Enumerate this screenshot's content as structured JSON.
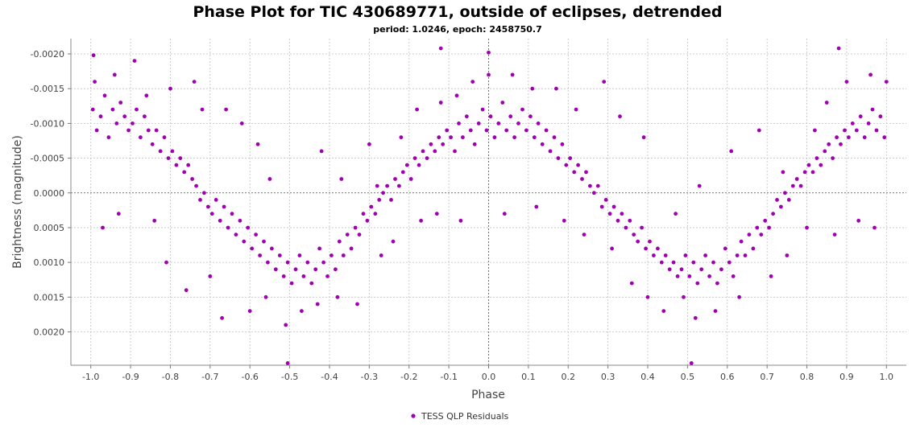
{
  "chart_data": {
    "type": "scatter",
    "title": "Phase Plot for TIC 430689771, outside of eclipses, detrended",
    "subtitle": "period: 1.0246, epoch: 2458750.7",
    "xlabel": "Phase",
    "ylabel": "Brightness (magnitude)",
    "xlim": [
      -1.05,
      1.05
    ],
    "ylim": [
      -0.00222,
      0.00248
    ],
    "y_inverted": true,
    "grid": true,
    "legend_position": "bottom-center",
    "x_ticks": [
      -1.0,
      -0.9,
      -0.8,
      -0.7,
      -0.6,
      -0.5,
      -0.4,
      -0.3,
      -0.2,
      -0.1,
      0.0,
      0.1,
      0.2,
      0.3,
      0.4,
      0.5,
      0.6,
      0.7,
      0.8,
      0.9,
      1.0
    ],
    "x_tick_labels": [
      "-1.0",
      "-0.9",
      "-0.8",
      "-0.7",
      "-0.6",
      "-0.5",
      "-0.4",
      "-0.3",
      "-0.2",
      "-0.1",
      "0.0",
      "0.1",
      "0.2",
      "0.3",
      "0.4",
      "0.5",
      "0.6",
      "0.7",
      "0.8",
      "0.9",
      "1.0"
    ],
    "y_ticks": [
      -0.002,
      -0.0015,
      -0.001,
      -0.0005,
      0.0,
      0.0005,
      0.001,
      0.0015,
      0.002
    ],
    "y_tick_labels": [
      "-0.0020",
      "-0.0015",
      "-0.0010",
      "-0.0005",
      "0.0000",
      "0.0005",
      "0.0010",
      "0.0015",
      "0.0020"
    ],
    "series": [
      {
        "name": "TESS QLP Residuals",
        "color": "#a000b0",
        "points": [
          [
            -0.995,
            -0.0012
          ],
          [
            -0.985,
            -0.0009
          ],
          [
            -0.975,
            -0.0011
          ],
          [
            -0.965,
            -0.0014
          ],
          [
            -0.955,
            -0.0008
          ],
          [
            -0.945,
            -0.0012
          ],
          [
            -0.935,
            -0.001
          ],
          [
            -0.925,
            -0.0013
          ],
          [
            -0.915,
            -0.0011
          ],
          [
            -0.905,
            -0.0009
          ],
          [
            -0.895,
            -0.001
          ],
          [
            -0.885,
            -0.0012
          ],
          [
            -0.875,
            -0.0008
          ],
          [
            -0.865,
            -0.0011
          ],
          [
            -0.855,
            -0.0009
          ],
          [
            -0.845,
            -0.0007
          ],
          [
            -0.835,
            -0.0009
          ],
          [
            -0.825,
            -0.0006
          ],
          [
            -0.815,
            -0.0008
          ],
          [
            -0.805,
            -0.0005
          ],
          [
            -0.795,
            -0.0006
          ],
          [
            -0.785,
            -0.0004
          ],
          [
            -0.775,
            -0.0005
          ],
          [
            -0.765,
            -0.0003
          ],
          [
            -0.755,
            -0.0004
          ],
          [
            -0.745,
            -0.0002
          ],
          [
            -0.735,
            -0.0001
          ],
          [
            -0.725,
            0.0001
          ],
          [
            -0.715,
            0.0
          ],
          [
            -0.705,
            0.0002
          ],
          [
            -0.695,
            0.0003
          ],
          [
            -0.685,
            0.0001
          ],
          [
            -0.675,
            0.0004
          ],
          [
            -0.665,
            0.0002
          ],
          [
            -0.655,
            0.0005
          ],
          [
            -0.645,
            0.0003
          ],
          [
            -0.635,
            0.0006
          ],
          [
            -0.625,
            0.0004
          ],
          [
            -0.615,
            0.0007
          ],
          [
            -0.605,
            0.0005
          ],
          [
            -0.595,
            0.0008
          ],
          [
            -0.585,
            0.0006
          ],
          [
            -0.575,
            0.0009
          ],
          [
            -0.565,
            0.0007
          ],
          [
            -0.555,
            0.001
          ],
          [
            -0.545,
            0.0008
          ],
          [
            -0.535,
            0.0011
          ],
          [
            -0.525,
            0.0009
          ],
          [
            -0.515,
            0.0012
          ],
          [
            -0.505,
            0.001
          ],
          [
            -0.495,
            0.0013
          ],
          [
            -0.485,
            0.0011
          ],
          [
            -0.475,
            0.0009
          ],
          [
            -0.465,
            0.0012
          ],
          [
            -0.455,
            0.001
          ],
          [
            -0.445,
            0.0013
          ],
          [
            -0.435,
            0.0011
          ],
          [
            -0.425,
            0.0008
          ],
          [
            -0.415,
            0.001
          ],
          [
            -0.405,
            0.0012
          ],
          [
            -0.395,
            0.0009
          ],
          [
            -0.385,
            0.0011
          ],
          [
            -0.375,
            0.0007
          ],
          [
            -0.365,
            0.0009
          ],
          [
            -0.355,
            0.0006
          ],
          [
            -0.345,
            0.0008
          ],
          [
            -0.335,
            0.0005
          ],
          [
            -0.325,
            0.0006
          ],
          [
            -0.315,
            0.0003
          ],
          [
            -0.305,
            0.0004
          ],
          [
            -0.295,
            0.0002
          ],
          [
            -0.285,
            0.0003
          ],
          [
            -0.275,
            0.0001
          ],
          [
            -0.265,
            0.0
          ],
          [
            -0.255,
            -0.0001
          ],
          [
            -0.245,
            0.0001
          ],
          [
            -0.235,
            -0.0002
          ],
          [
            -0.225,
            -0.0001
          ],
          [
            -0.215,
            -0.0003
          ],
          [
            -0.205,
            -0.0004
          ],
          [
            -0.195,
            -0.0002
          ],
          [
            -0.185,
            -0.0005
          ],
          [
            -0.175,
            -0.0004
          ],
          [
            -0.165,
            -0.0006
          ],
          [
            -0.155,
            -0.0005
          ],
          [
            -0.145,
            -0.0007
          ],
          [
            -0.135,
            -0.0006
          ],
          [
            -0.125,
            -0.0008
          ],
          [
            -0.115,
            -0.0007
          ],
          [
            -0.105,
            -0.0009
          ],
          [
            -0.095,
            -0.0008
          ],
          [
            -0.085,
            -0.0006
          ],
          [
            -0.075,
            -0.001
          ],
          [
            -0.065,
            -0.0008
          ],
          [
            -0.055,
            -0.0011
          ],
          [
            -0.045,
            -0.0009
          ],
          [
            -0.035,
            -0.0007
          ],
          [
            -0.025,
            -0.001
          ],
          [
            -0.015,
            -0.0012
          ],
          [
            -0.005,
            -0.0009
          ],
          [
            0.005,
            -0.0011
          ],
          [
            0.015,
            -0.0008
          ],
          [
            0.025,
            -0.001
          ],
          [
            0.035,
            -0.0013
          ],
          [
            0.045,
            -0.0009
          ],
          [
            0.055,
            -0.0011
          ],
          [
            0.065,
            -0.0008
          ],
          [
            0.075,
            -0.001
          ],
          [
            0.085,
            -0.0012
          ],
          [
            0.095,
            -0.0009
          ],
          [
            0.105,
            -0.0011
          ],
          [
            0.115,
            -0.0008
          ],
          [
            0.125,
            -0.001
          ],
          [
            0.135,
            -0.0007
          ],
          [
            0.145,
            -0.0009
          ],
          [
            0.155,
            -0.0006
          ],
          [
            0.165,
            -0.0008
          ],
          [
            0.175,
            -0.0005
          ],
          [
            0.185,
            -0.0007
          ],
          [
            0.195,
            -0.0004
          ],
          [
            0.205,
            -0.0005
          ],
          [
            0.215,
            -0.0003
          ],
          [
            0.225,
            -0.0004
          ],
          [
            0.235,
            -0.0002
          ],
          [
            0.245,
            -0.0003
          ],
          [
            0.255,
            -0.0001
          ],
          [
            0.265,
            0.0
          ],
          [
            0.275,
            -0.0001
          ],
          [
            0.285,
            0.0002
          ],
          [
            0.295,
            0.0001
          ],
          [
            0.305,
            0.0003
          ],
          [
            0.315,
            0.0002
          ],
          [
            0.325,
            0.0004
          ],
          [
            0.335,
            0.0003
          ],
          [
            0.345,
            0.0005
          ],
          [
            0.355,
            0.0004
          ],
          [
            0.365,
            0.0006
          ],
          [
            0.375,
            0.0007
          ],
          [
            0.385,
            0.0005
          ],
          [
            0.395,
            0.0008
          ],
          [
            0.405,
            0.0007
          ],
          [
            0.415,
            0.0009
          ],
          [
            0.425,
            0.0008
          ],
          [
            0.435,
            0.001
          ],
          [
            0.445,
            0.0009
          ],
          [
            0.455,
            0.0011
          ],
          [
            0.465,
            0.001
          ],
          [
            0.475,
            0.0012
          ],
          [
            0.485,
            0.0011
          ],
          [
            0.495,
            0.0009
          ],
          [
            0.505,
            0.0012
          ],
          [
            0.515,
            0.001
          ],
          [
            0.525,
            0.0013
          ],
          [
            0.535,
            0.0011
          ],
          [
            0.545,
            0.0009
          ],
          [
            0.555,
            0.0012
          ],
          [
            0.565,
            0.001
          ],
          [
            0.575,
            0.0013
          ],
          [
            0.585,
            0.0011
          ],
          [
            0.595,
            0.0008
          ],
          [
            0.605,
            0.001
          ],
          [
            0.615,
            0.0012
          ],
          [
            0.625,
            0.0009
          ],
          [
            0.635,
            0.0007
          ],
          [
            0.645,
            0.0009
          ],
          [
            0.655,
            0.0006
          ],
          [
            0.665,
            0.0008
          ],
          [
            0.675,
            0.0005
          ],
          [
            0.685,
            0.0006
          ],
          [
            0.695,
            0.0004
          ],
          [
            0.705,
            0.0005
          ],
          [
            0.715,
            0.0003
          ],
          [
            0.725,
            0.0001
          ],
          [
            0.735,
            0.0002
          ],
          [
            0.745,
            0.0
          ],
          [
            0.755,
            0.0001
          ],
          [
            0.765,
            -0.0001
          ],
          [
            0.775,
            -0.0002
          ],
          [
            0.785,
            -0.0001
          ],
          [
            0.795,
            -0.0003
          ],
          [
            0.805,
            -0.0004
          ],
          [
            0.815,
            -0.0003
          ],
          [
            0.825,
            -0.0005
          ],
          [
            0.835,
            -0.0004
          ],
          [
            0.845,
            -0.0006
          ],
          [
            0.855,
            -0.0007
          ],
          [
            0.865,
            -0.0005
          ],
          [
            0.875,
            -0.0008
          ],
          [
            0.885,
            -0.0007
          ],
          [
            0.895,
            -0.0009
          ],
          [
            0.905,
            -0.0008
          ],
          [
            0.915,
            -0.001
          ],
          [
            0.925,
            -0.0009
          ],
          [
            0.935,
            -0.0011
          ],
          [
            0.945,
            -0.0008
          ],
          [
            0.955,
            -0.001
          ],
          [
            0.965,
            -0.0012
          ],
          [
            0.975,
            -0.0009
          ],
          [
            0.985,
            -0.0011
          ],
          [
            0.995,
            -0.0008
          ],
          [
            -0.99,
            -0.0016
          ],
          [
            -0.94,
            -0.0017
          ],
          [
            -0.89,
            -0.0019
          ],
          [
            -0.86,
            -0.0014
          ],
          [
            -0.8,
            -0.0015
          ],
          [
            -0.74,
            -0.0016
          ],
          [
            -0.72,
            -0.0012
          ],
          [
            -0.66,
            -0.0012
          ],
          [
            -0.62,
            -0.001
          ],
          [
            -0.58,
            -0.0007
          ],
          [
            -0.55,
            -0.0002
          ],
          [
            -0.42,
            -0.0006
          ],
          [
            -0.37,
            -0.0002
          ],
          [
            -0.3,
            -0.0007
          ],
          [
            -0.28,
            -0.0001
          ],
          [
            -0.22,
            -0.0008
          ],
          [
            -0.18,
            -0.0012
          ],
          [
            -0.12,
            -0.0013
          ],
          [
            -0.08,
            -0.0014
          ],
          [
            -0.04,
            -0.0016
          ],
          [
            0.0,
            -0.0017
          ],
          [
            0.06,
            -0.0017
          ],
          [
            0.11,
            -0.0015
          ],
          [
            0.17,
            -0.0015
          ],
          [
            0.22,
            -0.0012
          ],
          [
            0.29,
            -0.0016
          ],
          [
            0.33,
            -0.0011
          ],
          [
            0.39,
            -0.0008
          ],
          [
            0.47,
            0.0003
          ],
          [
            0.53,
            -0.0001
          ],
          [
            0.61,
            -0.0006
          ],
          [
            0.68,
            -0.0009
          ],
          [
            0.74,
            -0.0003
          ],
          [
            0.82,
            -0.0009
          ],
          [
            0.85,
            -0.0013
          ],
          [
            0.9,
            -0.0016
          ],
          [
            0.96,
            -0.0017
          ],
          [
            1.0,
            -0.0016
          ],
          [
            -0.97,
            0.0005
          ],
          [
            -0.93,
            0.0003
          ],
          [
            -0.84,
            0.0004
          ],
          [
            -0.81,
            0.001
          ],
          [
            -0.76,
            0.0014
          ],
          [
            -0.7,
            0.0012
          ],
          [
            -0.67,
            0.0018
          ],
          [
            -0.6,
            0.0017
          ],
          [
            -0.56,
            0.0015
          ],
          [
            -0.51,
            0.0019
          ],
          [
            -0.47,
            0.0017
          ],
          [
            -0.43,
            0.0016
          ],
          [
            -0.38,
            0.0015
          ],
          [
            -0.33,
            0.0016
          ],
          [
            -0.27,
            0.0009
          ],
          [
            -0.24,
            0.0007
          ],
          [
            -0.17,
            0.0004
          ],
          [
            -0.13,
            0.0003
          ],
          [
            -0.07,
            0.0004
          ],
          [
            0.04,
            0.0003
          ],
          [
            0.12,
            0.0002
          ],
          [
            0.19,
            0.0004
          ],
          [
            0.24,
            0.0006
          ],
          [
            0.31,
            0.0008
          ],
          [
            0.36,
            0.0013
          ],
          [
            0.4,
            0.0015
          ],
          [
            0.44,
            0.0017
          ],
          [
            0.49,
            0.0015
          ],
          [
            0.52,
            0.0018
          ],
          [
            0.57,
            0.0017
          ],
          [
            0.63,
            0.0015
          ],
          [
            0.71,
            0.0012
          ],
          [
            0.75,
            0.0009
          ],
          [
            0.8,
            0.0005
          ],
          [
            0.87,
            0.0006
          ],
          [
            0.93,
            0.0004
          ],
          [
            0.97,
            0.0005
          ],
          [
            -0.993,
            -0.00198
          ],
          [
            -0.12,
            -0.00208
          ],
          [
            0.0,
            -0.00202
          ],
          [
            0.88,
            -0.00208
          ],
          [
            -0.505,
            0.00245
          ],
          [
            0.51,
            0.00245
          ]
        ]
      }
    ]
  }
}
